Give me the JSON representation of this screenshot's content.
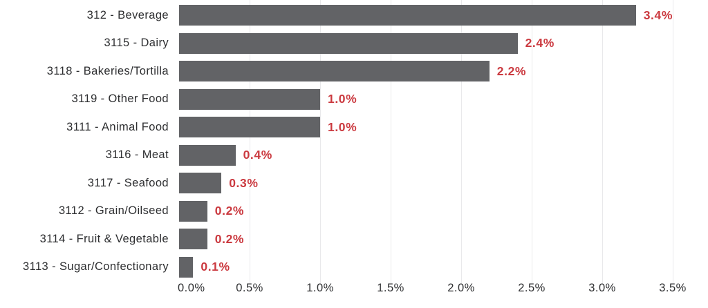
{
  "chart_data": {
    "type": "bar",
    "orientation": "horizontal",
    "title": "",
    "xlabel": "",
    "ylabel": "",
    "categories": [
      "312 - Beverage",
      "3115 - Dairy",
      "3118 - Bakeries/Tortilla",
      "3119 - Other Food",
      "3111 - Animal Food",
      "3116 - Meat",
      "3117 - Seafood",
      "3112 - Grain/Oilseed",
      "3114 - Fruit & Vegetable",
      "3113 - Sugar/Confectionary"
    ],
    "values": [
      3.4,
      2.4,
      2.2,
      1.0,
      1.0,
      0.4,
      0.3,
      0.2,
      0.2,
      0.1
    ],
    "value_labels": [
      "3.4%",
      "2.4%",
      "2.2%",
      "1.0%",
      "1.0%",
      "0.4%",
      "0.3%",
      "0.2%",
      "0.2%",
      "0.1%"
    ],
    "x_ticks": [
      "0.0%",
      "0.5%",
      "1.0%",
      "1.5%",
      "2.0%",
      "2.5%",
      "3.0%",
      "3.5%"
    ],
    "x_tick_values": [
      0,
      0.5,
      1.0,
      1.5,
      2.0,
      2.5,
      3.0,
      3.5
    ],
    "xlim": [
      0,
      3.5
    ],
    "grid": "vertical-only",
    "legend": "none",
    "colors": {
      "bar": "#626366",
      "value_label": "#cb3a40",
      "category_label": "#2d2e30",
      "tick_label": "#2d2e30",
      "gridline": "#e9e9eb",
      "background": "#ffffff"
    }
  }
}
